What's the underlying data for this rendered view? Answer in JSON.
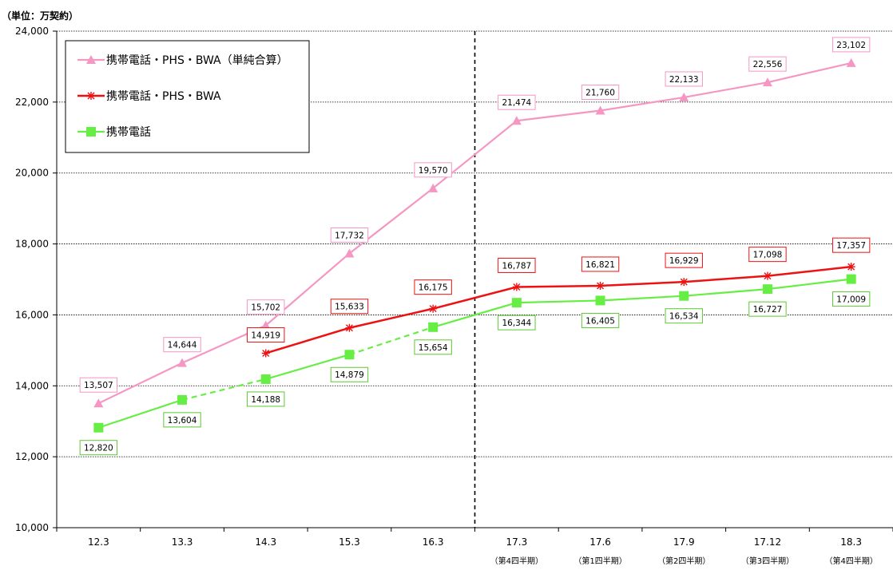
{
  "chart_data": {
    "type": "line",
    "unit_label": "（単位：万契約）",
    "categories": [
      "12.3",
      "13.3",
      "14.3",
      "15.3",
      "16.3",
      "17.3",
      "17.6",
      "17.9",
      "17.12",
      "18.3"
    ],
    "category_sublabels": [
      "",
      "",
      "",
      "",
      "",
      "（第4四半期）",
      "（第1四半期）",
      "（第2四半期）",
      "（第3四半期）",
      "（第4四半期）"
    ],
    "ylim": [
      10000,
      24000
    ],
    "yticks": [
      "10,000",
      "12,000",
      "14,000",
      "16,000",
      "18,000",
      "20,000",
      "22,000",
      "24,000"
    ],
    "grid": true,
    "legend_position": "top-left",
    "divider_after_category": "16.3",
    "series": [
      {
        "name": "携帯電話・PHS・BWA（単純合算）",
        "color": "#f596c3",
        "marker": "triangle",
        "values": [
          13507,
          14644,
          15702,
          17732,
          19570,
          21474,
          21760,
          22133,
          22556,
          23102
        ],
        "labels": [
          "13,507",
          "14,644",
          "15,702",
          "17,732",
          "19,570",
          "21,474",
          "21,760",
          "22,133",
          "22,556",
          "23,102"
        ]
      },
      {
        "name": "携帯電話・PHS・BWA",
        "color": "#ee1111",
        "marker": "star",
        "values": [
          null,
          null,
          14919,
          15633,
          16175,
          16787,
          16821,
          16929,
          17098,
          17357
        ],
        "labels": [
          "",
          "",
          "14,919",
          "15,633",
          "16,175",
          "16,787",
          "16,821",
          "16,929",
          "17,098",
          "17,357"
        ]
      },
      {
        "name": "携帯電話",
        "color": "#66ee44",
        "marker": "square",
        "values": [
          12820,
          13604,
          14188,
          14879,
          15654,
          16344,
          16405,
          16534,
          16727,
          17009
        ],
        "labels": [
          "12,820",
          "13,604",
          "14,188",
          "14,879",
          "15,654",
          "16,344",
          "16,405",
          "16,534",
          "16,727",
          "17,009"
        ],
        "dashed_segments": [
          [
            1,
            2
          ],
          [
            3,
            4
          ]
        ]
      }
    ]
  }
}
